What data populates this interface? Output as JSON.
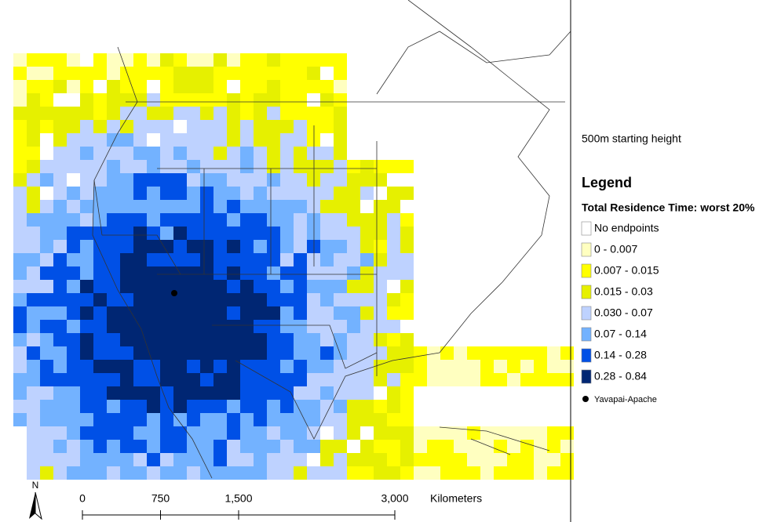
{
  "map": {
    "subtitle": "500m starting height",
    "legend_title": "Legend",
    "legend_subtitle": "Total Residence Time: worst 20%",
    "classes": [
      {
        "label": "No endpoints",
        "color": "#ffffff"
      },
      {
        "label": "0 - 0.007",
        "color": "#ffffc0"
      },
      {
        "label": "0.007 - 0.015",
        "color": "#ffff00"
      },
      {
        "label": "0.015 - 0.03",
        "color": "#e6f000"
      },
      {
        "label": "0.030 - 0.07",
        "color": "#bed2ff"
      },
      {
        "label": "0.07 - 0.14",
        "color": "#73b2ff"
      },
      {
        "label": "0.14 - 0.28",
        "color": "#0050e6"
      },
      {
        "label": "0.28 - 0.84",
        "color": "#002673"
      }
    ],
    "site": {
      "label": "Yavapai-Apache",
      "color": "#000000"
    },
    "north": "N",
    "scale_bar": {
      "unit": "Kilometers",
      "ticks": [
        0,
        750,
        {
          "value": 1500,
          "label": "1,500"
        },
        {
          "value": 3000,
          "label": "3,000"
        }
      ]
    }
  }
}
